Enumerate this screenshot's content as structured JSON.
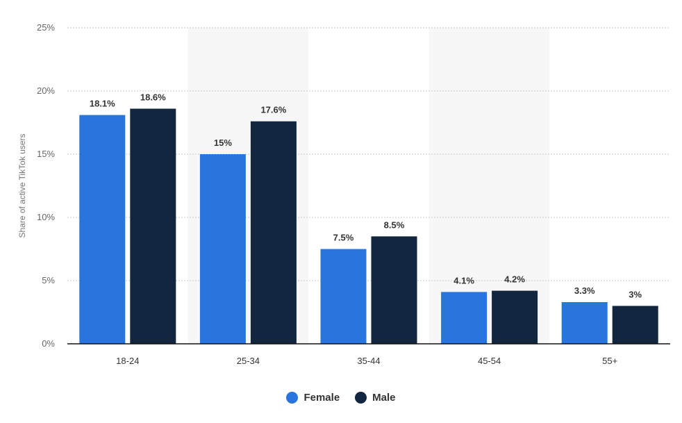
{
  "chart_data": {
    "type": "bar",
    "categories": [
      "18-24",
      "25-34",
      "35-44",
      "45-54",
      "55+"
    ],
    "series": [
      {
        "name": "Female",
        "values": [
          18.1,
          15,
          7.5,
          4.1,
          3.3
        ],
        "labels": [
          "18.1%",
          "15%",
          "7.5%",
          "4.1%",
          "3.3%"
        ],
        "color": "#2876dd"
      },
      {
        "name": "Male",
        "values": [
          18.6,
          17.6,
          8.5,
          4.2,
          3
        ],
        "labels": [
          "18.6%",
          "17.6%",
          "8.5%",
          "4.2%",
          "3%"
        ],
        "color": "#12263f"
      }
    ],
    "ylabel": "Share of active TikTok users",
    "xlabel": "",
    "ylim": [
      0,
      25
    ],
    "yticks": [
      0,
      5,
      10,
      15,
      20,
      25
    ],
    "ytick_labels": [
      "0%",
      "5%",
      "10%",
      "15%",
      "20%",
      "25%"
    ],
    "grid": true,
    "legend_position": "bottom-center"
  }
}
